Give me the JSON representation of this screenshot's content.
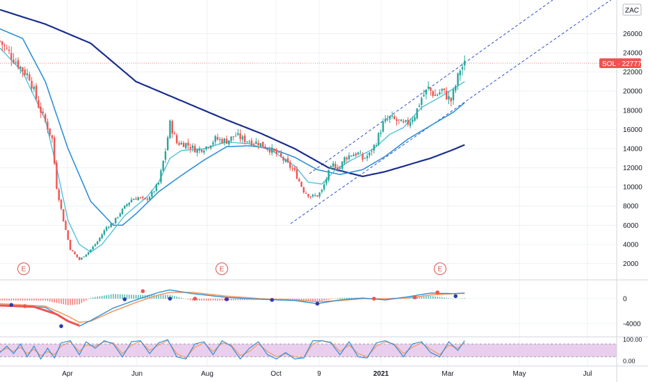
{
  "header": {
    "currency_label": "ZAC"
  },
  "price_tag": {
    "symbol": "SOL",
    "value": "22777",
    "color": "#ef5350"
  },
  "chart_data": {
    "type": "candlestick",
    "symbol": "SOL",
    "y_ticks": [
      "26000",
      "24000",
      "22000",
      "20000",
      "18000",
      "16000",
      "14000",
      "12000",
      "10000",
      "8000",
      "6000",
      "4000",
      "2000"
    ],
    "x_ticks": [
      {
        "label": "Apr",
        "bold": false
      },
      {
        "label": "Jun",
        "bold": false
      },
      {
        "label": "Aug",
        "bold": false
      },
      {
        "label": "Oct",
        "bold": false
      },
      {
        "label": "9",
        "bold": false
      },
      {
        "label": "2021",
        "bold": true
      },
      {
        "label": "Mar",
        "bold": false
      },
      {
        "label": "May",
        "bold": false
      },
      {
        "label": "Jul",
        "bold": false
      }
    ],
    "ylim": [
      0,
      28000
    ],
    "last_price": 22777,
    "earnings_markers": [
      "E",
      "E",
      "E"
    ],
    "colors": {
      "up": "#26a69a",
      "down": "#ef5350",
      "ma_fast": "#4fc3d9",
      "ma_mid": "#2f8fd6",
      "ma_slow": "#1a2f8c",
      "channel": "#2d50c8",
      "price_line": "#f07f7f"
    },
    "price_keypoints": [
      [
        0,
        25200
      ],
      [
        8,
        24000
      ],
      [
        18,
        22500
      ],
      [
        26,
        21500
      ],
      [
        34,
        18500
      ],
      [
        40,
        16800
      ],
      [
        46,
        15000
      ],
      [
        50,
        10000
      ],
      [
        56,
        6500
      ],
      [
        62,
        3500
      ],
      [
        70,
        2400
      ],
      [
        78,
        3200
      ],
      [
        86,
        4300
      ],
      [
        94,
        5800
      ],
      [
        100,
        6300
      ],
      [
        106,
        7300
      ],
      [
        112,
        8200
      ],
      [
        116,
        8700
      ],
      [
        122,
        8900
      ],
      [
        128,
        8600
      ],
      [
        134,
        9300
      ],
      [
        140,
        10400
      ],
      [
        146,
        13800
      ],
      [
        150,
        16600
      ],
      [
        156,
        14600
      ],
      [
        164,
        14500
      ],
      [
        174,
        13800
      ],
      [
        182,
        14200
      ],
      [
        190,
        15000
      ],
      [
        200,
        14800
      ],
      [
        208,
        15400
      ],
      [
        214,
        15000
      ],
      [
        220,
        14800
      ],
      [
        228,
        14600
      ],
      [
        234,
        14200
      ],
      [
        240,
        13800
      ],
      [
        246,
        13300
      ],
      [
        252,
        12600
      ],
      [
        260,
        11600
      ],
      [
        268,
        9600
      ],
      [
        274,
        9000
      ],
      [
        280,
        9100
      ],
      [
        284,
        9600
      ],
      [
        290,
        11500
      ],
      [
        294,
        12300
      ],
      [
        300,
        12000
      ],
      [
        304,
        13000
      ],
      [
        310,
        13400
      ],
      [
        316,
        13500
      ],
      [
        320,
        12900
      ],
      [
        326,
        13400
      ],
      [
        332,
        14700
      ],
      [
        338,
        16600
      ],
      [
        344,
        17200
      ],
      [
        350,
        16900
      ],
      [
        356,
        16500
      ],
      [
        360,
        16700
      ],
      [
        366,
        17500
      ],
      [
        372,
        19300
      ],
      [
        378,
        20300
      ],
      [
        384,
        19500
      ],
      [
        390,
        20100
      ],
      [
        394,
        19500
      ],
      [
        398,
        19000
      ],
      [
        402,
        20600
      ],
      [
        406,
        22300
      ],
      [
        410,
        22777
      ]
    ],
    "macd": {
      "macd_keypoints": [
        [
          0,
          -1000
        ],
        [
          20,
          -1200
        ],
        [
          40,
          -1400
        ],
        [
          60,
          -3500
        ],
        [
          70,
          -4400
        ],
        [
          80,
          -3500
        ],
        [
          100,
          -1500
        ],
        [
          120,
          -200
        ],
        [
          140,
          1000
        ],
        [
          150,
          1400
        ],
        [
          170,
          800
        ],
        [
          200,
          200
        ],
        [
          230,
          -100
        ],
        [
          260,
          -300
        ],
        [
          280,
          -800
        ],
        [
          300,
          -200
        ],
        [
          320,
          100
        ],
        [
          340,
          -200
        ],
        [
          360,
          300
        ],
        [
          380,
          900
        ],
        [
          400,
          800
        ],
        [
          410,
          900
        ]
      ],
      "signal_keypoints": [
        [
          0,
          -800
        ],
        [
          20,
          -1000
        ],
        [
          40,
          -1200
        ],
        [
          60,
          -2800
        ],
        [
          70,
          -3800
        ],
        [
          80,
          -3600
        ],
        [
          100,
          -2000
        ],
        [
          120,
          -600
        ],
        [
          140,
          600
        ],
        [
          150,
          1000
        ],
        [
          170,
          1000
        ],
        [
          200,
          400
        ],
        [
          230,
          0
        ],
        [
          260,
          -200
        ],
        [
          280,
          -500
        ],
        [
          300,
          -300
        ],
        [
          320,
          0
        ],
        [
          340,
          0
        ],
        [
          360,
          100
        ],
        [
          380,
          600
        ],
        [
          400,
          800
        ],
        [
          410,
          850
        ]
      ],
      "y_ticks": [
        "0",
        "-4000"
      ]
    },
    "stoch": {
      "k_keypoints": [
        [
          0,
          40
        ],
        [
          6,
          70
        ],
        [
          12,
          35
        ],
        [
          18,
          80
        ],
        [
          24,
          20
        ],
        [
          30,
          70
        ],
        [
          36,
          10
        ],
        [
          42,
          60
        ],
        [
          48,
          15
        ],
        [
          54,
          85
        ],
        [
          62,
          95
        ],
        [
          70,
          30
        ],
        [
          76,
          90
        ],
        [
          84,
          60
        ],
        [
          92,
          95
        ],
        [
          100,
          80
        ],
        [
          108,
          20
        ],
        [
          116,
          90
        ],
        [
          124,
          95
        ],
        [
          132,
          35
        ],
        [
          140,
          85
        ],
        [
          148,
          100
        ],
        [
          156,
          20
        ],
        [
          164,
          10
        ],
        [
          172,
          80
        ],
        [
          180,
          90
        ],
        [
          188,
          30
        ],
        [
          196,
          95
        ],
        [
          204,
          70
        ],
        [
          212,
          10
        ],
        [
          220,
          60
        ],
        [
          228,
          90
        ],
        [
          236,
          30
        ],
        [
          244,
          10
        ],
        [
          252,
          40
        ],
        [
          260,
          10
        ],
        [
          268,
          15
        ],
        [
          276,
          95
        ],
        [
          284,
          95
        ],
        [
          292,
          85
        ],
        [
          300,
          30
        ],
        [
          308,
          90
        ],
        [
          316,
          20
        ],
        [
          324,
          15
        ],
        [
          332,
          85
        ],
        [
          340,
          95
        ],
        [
          348,
          75
        ],
        [
          356,
          20
        ],
        [
          364,
          80
        ],
        [
          372,
          90
        ],
        [
          380,
          40
        ],
        [
          388,
          20
        ],
        [
          396,
          90
        ],
        [
          404,
          50
        ],
        [
          410,
          95
        ]
      ],
      "d_keypoints": [
        [
          0,
          45
        ],
        [
          6,
          60
        ],
        [
          12,
          45
        ],
        [
          18,
          65
        ],
        [
          24,
          35
        ],
        [
          30,
          55
        ],
        [
          36,
          25
        ],
        [
          42,
          45
        ],
        [
          48,
          30
        ],
        [
          54,
          70
        ],
        [
          62,
          90
        ],
        [
          70,
          45
        ],
        [
          76,
          75
        ],
        [
          84,
          70
        ],
        [
          92,
          90
        ],
        [
          100,
          85
        ],
        [
          108,
          35
        ],
        [
          116,
          75
        ],
        [
          124,
          92
        ],
        [
          132,
          50
        ],
        [
          140,
          75
        ],
        [
          148,
          95
        ],
        [
          156,
          35
        ],
        [
          164,
          15
        ],
        [
          172,
          65
        ],
        [
          180,
          85
        ],
        [
          188,
          45
        ],
        [
          196,
          85
        ],
        [
          204,
          75
        ],
        [
          212,
          25
        ],
        [
          220,
          45
        ],
        [
          228,
          80
        ],
        [
          236,
          45
        ],
        [
          244,
          20
        ],
        [
          252,
          35
        ],
        [
          260,
          20
        ],
        [
          268,
          15
        ],
        [
          276,
          80
        ],
        [
          284,
          95
        ],
        [
          292,
          88
        ],
        [
          300,
          45
        ],
        [
          308,
          75
        ],
        [
          316,
          35
        ],
        [
          324,
          20
        ],
        [
          332,
          70
        ],
        [
          340,
          90
        ],
        [
          348,
          80
        ],
        [
          356,
          35
        ],
        [
          364,
          65
        ],
        [
          372,
          85
        ],
        [
          380,
          55
        ],
        [
          388,
          30
        ],
        [
          396,
          75
        ],
        [
          404,
          60
        ],
        [
          410,
          85
        ]
      ],
      "upper_band": 80,
      "lower_band": 20,
      "y_ticks": [
        "100.00",
        "0.00"
      ],
      "band_color": "#e1bee7"
    }
  }
}
